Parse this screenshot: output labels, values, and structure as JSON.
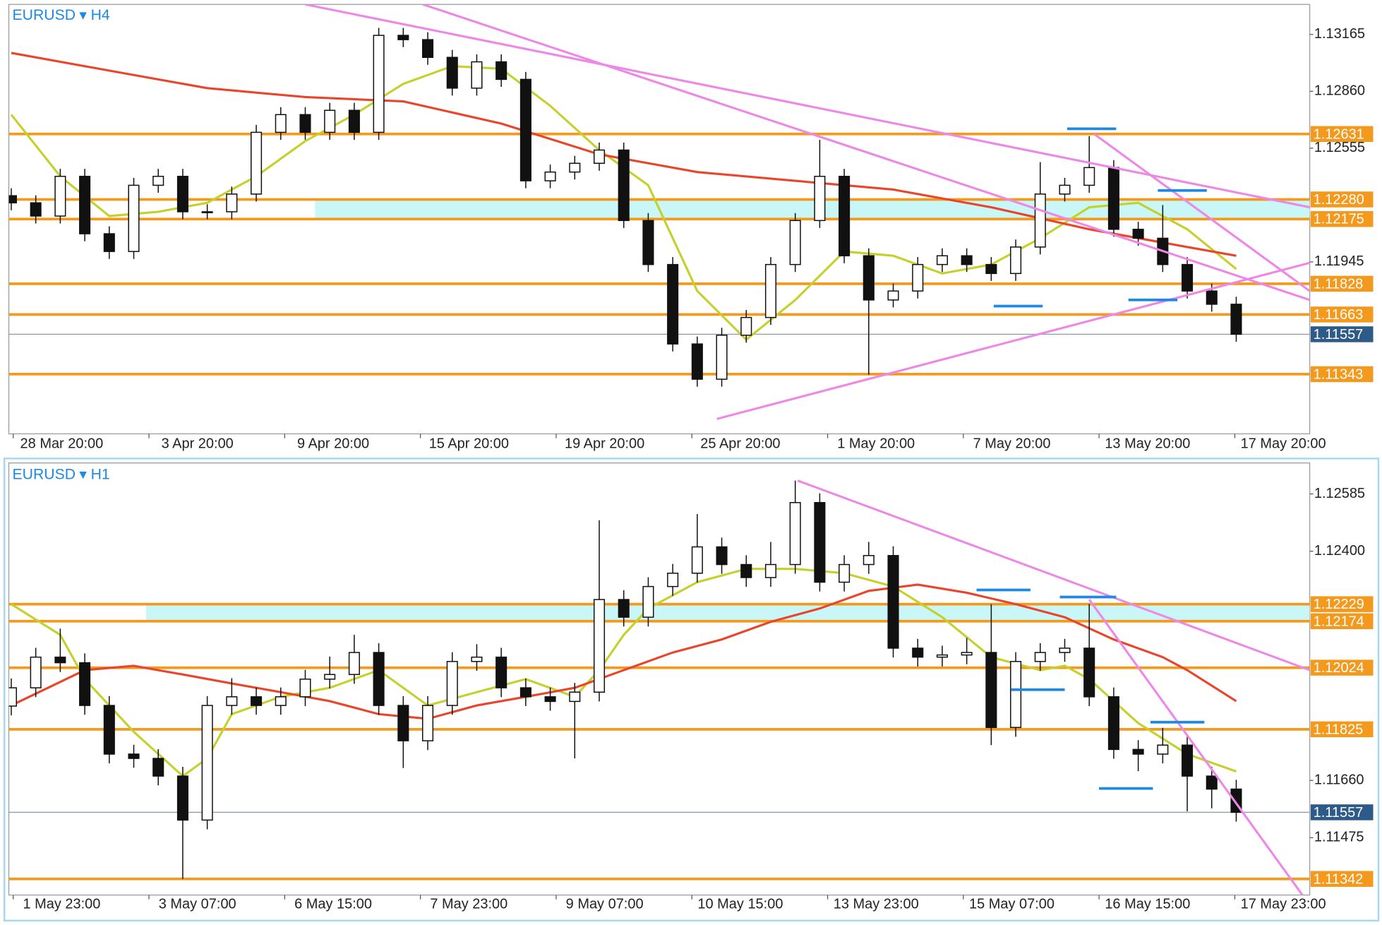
{
  "chart_data": [
    {
      "type": "candlestick",
      "symbol": "EURUSD",
      "timeframe": "H4",
      "ylim": [
        1.11023,
        1.13326
      ],
      "xlim": [
        -0.1,
        53
      ],
      "yticks": [
        1.13165,
        {
          "value": 1.1286,
          "label": "1.12860"
        },
        1.12555,
        1.11945
      ],
      "x_labels": [
        "28 Mar 20:00",
        "3 Apr 20:00",
        "9 Apr 20:00",
        "15 Apr 20:00",
        "19 Apr 20:00",
        "25 Apr 20:00",
        "1 May 20:00",
        "7 May 20:00",
        "13 May 20:00",
        "17 May 20:00"
      ],
      "candles": {
        "open": [
          1.123,
          1.12262,
          1.12191,
          1.12404,
          1.12096,
          1.12001,
          1.12356,
          1.12404,
          1.12214,
          1.12214,
          1.12309,
          1.1264,
          1.12735,
          1.1264,
          1.12758,
          1.1264,
          1.1316,
          1.13137,
          1.13042,
          1.12877,
          1.13018,
          1.12924,
          1.1238,
          1.12427,
          1.12474,
          1.12545,
          1.12167,
          1.11931,
          1.11505,
          1.11316,
          1.11552,
          1.11647,
          1.11931,
          1.12167,
          1.12404,
          1.11978,
          1.11741,
          1.11789,
          1.11931,
          1.11978,
          1.11931,
          1.11883,
          1.12025,
          1.12309,
          1.12356,
          1.12451,
          1.1212,
          1.12072,
          1.11931,
          1.11789,
          1.11718
        ],
        "high": [
          1.1234,
          1.12302,
          1.12444,
          1.12444,
          1.12136,
          1.12396,
          1.12444,
          1.12444,
          1.12254,
          1.12349,
          1.1268,
          1.12775,
          1.12775,
          1.12798,
          1.12798,
          1.132,
          1.132,
          1.13177,
          1.13082,
          1.13058,
          1.13058,
          1.12964,
          1.12467,
          1.12514,
          1.12585,
          1.12585,
          1.12207,
          1.11971,
          1.11545,
          1.11592,
          1.11687,
          1.11971,
          1.12207,
          1.126,
          1.12444,
          1.12018,
          1.11829,
          1.11971,
          1.12018,
          1.12018,
          1.11971,
          1.12065,
          1.1248,
          1.12396,
          1.1262,
          1.12491,
          1.1216,
          1.1225,
          1.11971,
          1.11829,
          1.11758
        ],
        "low": [
          1.12222,
          1.12151,
          1.12151,
          1.12056,
          1.11961,
          1.11961,
          1.12316,
          1.12174,
          1.12174,
          1.12174,
          1.12269,
          1.126,
          1.126,
          1.126,
          1.126,
          1.126,
          1.13097,
          1.13002,
          1.12837,
          1.12837,
          1.12884,
          1.1234,
          1.1234,
          1.12387,
          1.12434,
          1.12127,
          1.11891,
          1.11465,
          1.11276,
          1.11276,
          1.11512,
          1.11607,
          1.11891,
          1.12127,
          1.11938,
          1.1134,
          1.11701,
          1.11749,
          1.11891,
          1.11891,
          1.11843,
          1.11843,
          1.11985,
          1.12269,
          1.12316,
          1.1208,
          1.12032,
          1.11891,
          1.11749,
          1.11678,
          1.11517
        ],
        "close": [
          1.12262,
          1.12191,
          1.12404,
          1.12096,
          1.12001,
          1.12356,
          1.12404,
          1.12214,
          1.12214,
          1.12309,
          1.1264,
          1.12735,
          1.1264,
          1.12758,
          1.1264,
          1.1316,
          1.13137,
          1.13042,
          1.12877,
          1.13018,
          1.12924,
          1.1238,
          1.12427,
          1.12474,
          1.12545,
          1.12167,
          1.11931,
          1.11505,
          1.11316,
          1.11552,
          1.11647,
          1.11931,
          1.12167,
          1.12404,
          1.11978,
          1.11741,
          1.11789,
          1.11931,
          1.11978,
          1.11931,
          1.11883,
          1.12025,
          1.12309,
          1.12356,
          1.12451,
          1.1212,
          1.12072,
          1.11931,
          1.11789,
          1.11718,
          1.11557
        ]
      },
      "lines": [
        {
          "color": "#c5d12a",
          "x": [
            0,
            2,
            4,
            6,
            8,
            10,
            12,
            14,
            16,
            18,
            20,
            22,
            24,
            26,
            28,
            30,
            32,
            34,
            36,
            38,
            40,
            42,
            44,
            46,
            48,
            50
          ],
          "values": [
            1.12735,
            1.12404,
            1.12191,
            1.12214,
            1.12262,
            1.12404,
            1.12593,
            1.12735,
            1.129,
            1.12995,
            1.12981,
            1.12782,
            1.12545,
            1.12356,
            1.11789,
            1.11528,
            1.11741,
            1.12001,
            1.11978,
            1.11883,
            1.11931,
            1.12072,
            1.12238,
            1.12262,
            1.1212,
            1.11907
          ]
        },
        {
          "color": "#e8452a",
          "x": [
            0,
            4,
            8,
            12,
            16,
            20,
            24,
            28,
            32,
            36,
            40,
            44,
            48,
            50
          ],
          "values": [
            1.13066,
            1.12971,
            1.12877,
            1.12829,
            1.12806,
            1.12687,
            1.12522,
            1.12427,
            1.1238,
            1.12333,
            1.12238,
            1.1212,
            1.12025,
            1.11978
          ]
        }
      ],
      "level_color": "#f39a1e",
      "levels": [
        1.12631,
        {
          "value": 1.1228,
          "label": "1.12280"
        },
        1.12175,
        1.11828,
        1.11663,
        1.11343
      ],
      "current_price": 1.11557,
      "zone": {
        "low": 1.12175,
        "high": 1.1228,
        "start": 12.4,
        "color": "#c9f6f6"
      },
      "trendline_color": "#ee88e6",
      "trendlines": [
        {
          "x": [
            12,
            53
          ],
          "values": [
            1.13326,
            1.12238
          ]
        },
        {
          "x": [
            16.8,
            53
          ],
          "values": [
            1.13326,
            1.11741
          ]
        },
        {
          "x": [
            44.2,
            53
          ],
          "values": [
            1.12631,
            1.11789
          ]
        },
        {
          "x": [
            28.8,
            53
          ],
          "values": [
            1.11103,
            1.1194
          ]
        }
      ],
      "marker_color": "#1e88e5",
      "markers": [
        {
          "x": [
            43.1,
            45.1
          ],
          "value": 1.12659
        },
        {
          "x": [
            46.8,
            48.8
          ],
          "value": 1.12328
        },
        {
          "x": [
            40.1,
            42.1
          ],
          "value": 1.11708
        },
        {
          "x": [
            45.6,
            47.6
          ],
          "value": 1.11741
        }
      ]
    },
    {
      "type": "candlestick",
      "symbol": "EURUSD",
      "timeframe": "H1",
      "ylim": [
        1.1129,
        1.12685
      ],
      "xlim": [
        -0.1,
        53
      ],
      "yticks": [
        1.12585,
        {
          "value": 1.124,
          "label": "1.12400"
        },
        {
          "value": 1.1166,
          "label": "1.11660"
        },
        1.11475
      ],
      "x_labels": [
        "1 May 23:00",
        "3 May 07:00",
        "6 May 15:00",
        "7 May 23:00",
        "9 May 07:00",
        "10 May 15:00",
        "13 May 23:00",
        "15 May 07:00",
        "16 May 15:00",
        "17 May 23:00"
      ],
      "candles": {
        "open": [
          1.119,
          1.11959,
          1.12058,
          1.1204,
          1.11902,
          1.11745,
          1.11731,
          1.11674,
          1.11532,
          1.11902,
          1.1193,
          1.11902,
          1.1193,
          1.11987,
          1.12002,
          1.12073,
          1.11902,
          1.11788,
          1.11902,
          1.12044,
          1.12058,
          1.11959,
          1.1193,
          1.11915,
          1.11945,
          1.12244,
          1.12187,
          1.12286,
          1.12329,
          1.12414,
          1.12357,
          1.12315,
          1.12357,
          1.12557,
          1.123,
          1.12357,
          1.12386,
          1.12087,
          1.12058,
          1.12065,
          1.12073,
          1.11831,
          1.12044,
          1.12073,
          1.12087,
          1.1193,
          1.1176,
          1.11745,
          1.11774,
          1.11674,
          1.11632
        ],
        "high": [
          1.11989,
          1.12088,
          1.1215,
          1.1207,
          1.11932,
          1.11775,
          1.11761,
          1.11704,
          1.11932,
          1.1199,
          1.1196,
          1.1196,
          1.12017,
          1.1206,
          1.1213,
          1.12103,
          1.11932,
          1.11932,
          1.12074,
          1.121,
          1.12088,
          1.11989,
          1.1196,
          1.11975,
          1.125,
          1.12274,
          1.12316,
          1.12359,
          1.1252,
          1.12444,
          1.12387,
          1.1243,
          1.12628,
          1.12587,
          1.12387,
          1.1243,
          1.12416,
          1.12117,
          1.12095,
          1.1212,
          1.12229,
          1.12074,
          1.12103,
          1.12117,
          1.12229,
          1.1196,
          1.1179,
          1.1183,
          1.11804,
          1.11704,
          1.11662
        ],
        "low": [
          1.1187,
          1.11929,
          1.1201,
          1.11872,
          1.11715,
          1.11701,
          1.11644,
          1.11342,
          1.11502,
          1.11872,
          1.11872,
          1.11872,
          1.119,
          1.11957,
          1.11972,
          1.11872,
          1.117,
          1.11758,
          1.11872,
          1.12014,
          1.11929,
          1.119,
          1.11885,
          1.11731,
          1.11915,
          1.12157,
          1.12157,
          1.12256,
          1.12299,
          1.12327,
          1.12285,
          1.12285,
          1.12327,
          1.1227,
          1.1227,
          1.12327,
          1.12057,
          1.12028,
          1.12028,
          1.12035,
          1.11774,
          1.11801,
          1.12014,
          1.12043,
          1.119,
          1.1173,
          1.1169,
          1.11715,
          1.1156,
          1.1157,
          1.11527
        ],
        "close": [
          1.11959,
          1.12058,
          1.1204,
          1.11902,
          1.11745,
          1.11731,
          1.11674,
          1.11532,
          1.11902,
          1.1193,
          1.11902,
          1.1193,
          1.11987,
          1.12002,
          1.12073,
          1.11902,
          1.11788,
          1.11902,
          1.12044,
          1.12058,
          1.11959,
          1.1193,
          1.11915,
          1.11945,
          1.12244,
          1.12187,
          1.12286,
          1.12329,
          1.12414,
          1.12357,
          1.12315,
          1.12357,
          1.12557,
          1.123,
          1.12357,
          1.12386,
          1.12087,
          1.12058,
          1.12065,
          1.12073,
          1.11831,
          1.12044,
          1.12073,
          1.12087,
          1.1193,
          1.1176,
          1.11745,
          1.11774,
          1.11674,
          1.11632,
          1.11557
        ]
      },
      "lines": [
        {
          "color": "#c5d12a",
          "x": [
            0,
            2,
            3,
            5,
            7,
            8,
            9,
            11,
            13,
            15,
            17,
            19,
            21,
            23,
            24,
            25,
            26,
            28,
            30,
            32,
            34,
            36,
            38,
            40,
            42,
            43,
            44,
            46,
            48,
            50
          ],
          "values": [
            1.12229,
            1.1213,
            1.11987,
            1.11817,
            1.11674,
            1.11731,
            1.11874,
            1.1193,
            1.11959,
            1.12016,
            1.11902,
            1.11945,
            1.11987,
            1.1193,
            1.12016,
            1.1213,
            1.12215,
            1.123,
            1.12343,
            1.12343,
            1.12329,
            1.12286,
            1.12187,
            1.12058,
            1.12016,
            1.1203,
            1.11987,
            1.11845,
            1.11745,
            1.11689
          ]
        },
        {
          "color": "#e8452a",
          "x": [
            0,
            3,
            5,
            7,
            9,
            11,
            13,
            15,
            17,
            19,
            21,
            23,
            25,
            27,
            29,
            31,
            33,
            35,
            37,
            39,
            41,
            43,
            45,
            47,
            48,
            50
          ],
          "values": [
            1.11902,
            1.12016,
            1.1203,
            1.12002,
            1.11973,
            1.11945,
            1.11916,
            1.11874,
            1.11859,
            1.11902,
            1.1193,
            1.11959,
            1.12016,
            1.12073,
            1.12115,
            1.12172,
            1.12215,
            1.12272,
            1.12292,
            1.12266,
            1.12229,
            1.12187,
            1.12115,
            1.12058,
            1.12016,
            1.11916
          ]
        }
      ],
      "level_color": "#f39a1e",
      "levels": [
        1.12229,
        1.12174,
        1.12024,
        1.11825,
        1.11342
      ],
      "current_price": 1.11557,
      "zone": {
        "low": 1.12174,
        "high": 1.12229,
        "start": 5.5,
        "color": "#c9f6f6"
      },
      "trendline_color": "#ee88e6",
      "trendlines": [
        {
          "x": [
            32.1,
            53
          ],
          "values": [
            1.12628,
            1.12016
          ]
        },
        {
          "x": [
            44,
            52.7
          ],
          "values": [
            1.12244,
            1.1129
          ]
        }
      ],
      "marker_color": "#1e88e5",
      "markers": [
        {
          "x": [
            39.4,
            41.6
          ],
          "value": 1.12275
        },
        {
          "x": [
            42.8,
            45.1
          ],
          "value": 1.12252
        },
        {
          "x": [
            40.8,
            43
          ],
          "value": 1.11953
        },
        {
          "x": [
            46.5,
            48.7
          ],
          "value": 1.11848
        },
        {
          "x": [
            44.4,
            46.6
          ],
          "value": 1.11634
        }
      ]
    }
  ]
}
